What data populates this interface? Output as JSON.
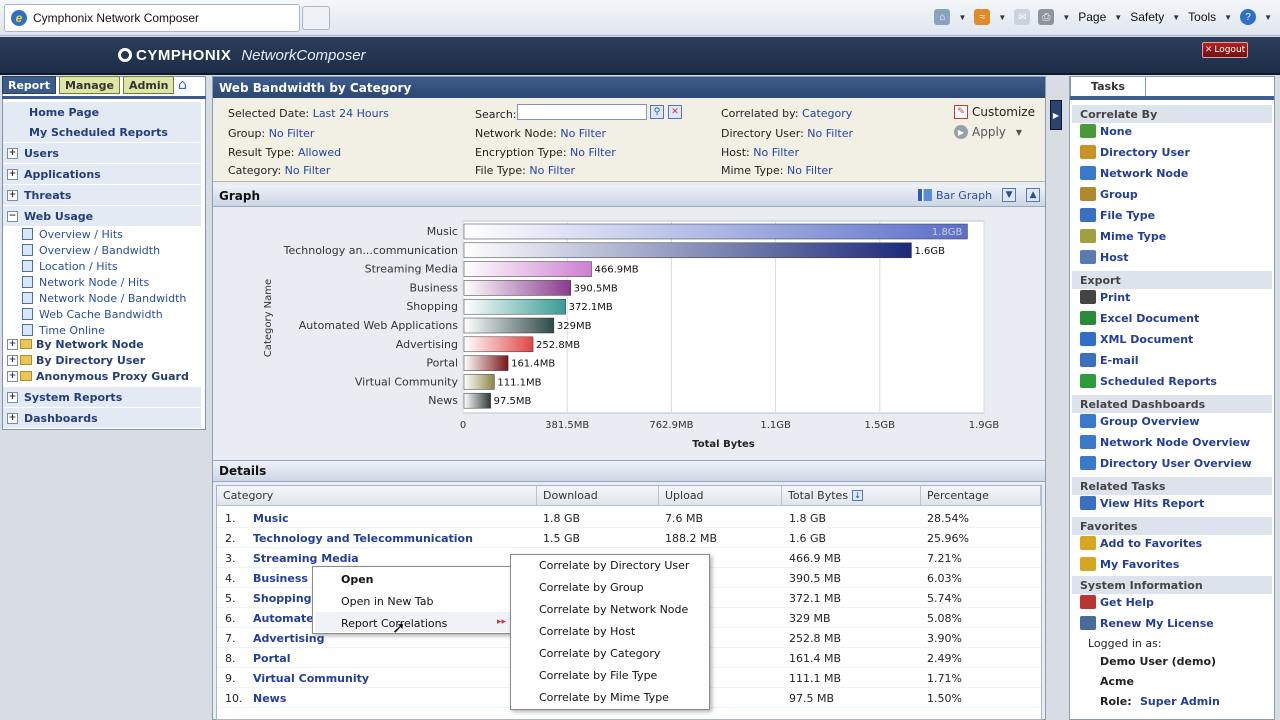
{
  "browser": {
    "tab_title": "Cymphonix Network Composer",
    "commands": {
      "page": "Page",
      "safety": "Safety",
      "tools": "Tools",
      "help": "?"
    }
  },
  "app": {
    "brand": "CYMPHONIX",
    "product": "NetworkComposer",
    "logout": "Logout"
  },
  "nav": {
    "tabs": [
      {
        "label": "Report",
        "active": true
      },
      {
        "label": "Manage"
      },
      {
        "label": "Admin"
      }
    ],
    "home": "Home Page",
    "scheduled": "My Scheduled Reports",
    "users": "Users",
    "applications": "Applications",
    "threats": "Threats",
    "web_usage": "Web Usage",
    "web_usage_items": [
      "Overview / Hits",
      "Overview / Bandwidth",
      "Location / Hits",
      "Network Node / Hits",
      "Network Node / Bandwidth",
      "Web Cache Bandwidth",
      "Time Online"
    ],
    "folders": [
      "By Network Node",
      "By Directory User",
      "Anonymous Proxy Guard"
    ],
    "system_reports": "System Reports",
    "dashboards": "Dashboards"
  },
  "report": {
    "title": "Web Bandwidth by Category",
    "filters": {
      "selected_date_label": "Selected Date:",
      "selected_date": "Last 24 Hours",
      "group_label": "Group:",
      "group": "No Filter",
      "result_type_label": "Result Type:",
      "result_type": "Allowed",
      "category_label": "Category:",
      "category": "No Filter",
      "search_label": "Search:",
      "network_node_label": "Network Node:",
      "network_node": "No Filter",
      "encryption_type_label": "Encryption Type:",
      "encryption_type": "No Filter",
      "file_type_label": "File Type:",
      "file_type": "No Filter",
      "correlated_by_label": "Correlated by:",
      "correlated_by": "Category",
      "directory_user_label": "Directory User:",
      "directory_user": "No Filter",
      "host_label": "Host:",
      "host": "No Filter",
      "mime_type_label": "Mime Type:",
      "mime_type": "No Filter"
    },
    "customize": "Customize",
    "apply": "Apply",
    "graph_label": "Graph",
    "graph_type": "Bar Graph",
    "details_label": "Details"
  },
  "chart_data": {
    "type": "bar",
    "orientation": "horizontal",
    "categories": [
      "Music",
      "Technology an...communication",
      "Streaming Media",
      "Business",
      "Shopping",
      "Automated Web Applications",
      "Advertising",
      "Portal",
      "Virtual Community",
      "News"
    ],
    "values_mb": [
      1843,
      1638,
      466.9,
      390.5,
      372.1,
      329,
      252.8,
      161.4,
      111.1,
      97.5
    ],
    "data_labels": [
      "1.8GB",
      "1.6GB",
      "466.9MB",
      "390.5MB",
      "372.1MB",
      "329MB",
      "252.8MB",
      "161.4MB",
      "111.1MB",
      "97.5MB"
    ],
    "colors": [
      "#5a6fc8",
      "#1b2a7a",
      "#cc7fd0",
      "#8a3a8f",
      "#3a9a94",
      "#2c4a48",
      "#e04545",
      "#7a1515",
      "#8e8448",
      "#2f3a36"
    ],
    "xlabel": "Total Bytes",
    "ylabel": "Category Name",
    "xticks": [
      "0",
      "381.5MB",
      "762.9MB",
      "1.1GB",
      "1.5GB",
      "1.9GB"
    ],
    "xlim_mb": [
      0,
      1907.3
    ],
    "grid": true
  },
  "details": {
    "headers": [
      "Category",
      "Download",
      "Upload",
      "Total Bytes",
      "Percentage"
    ],
    "rows": [
      {
        "n": "1.",
        "category": "Music",
        "download": "1.8 GB",
        "upload": "7.6 MB",
        "total": "1.8 GB",
        "pct": "28.54%"
      },
      {
        "n": "2.",
        "category": "Technology and Telecommunication",
        "download": "1.5 GB",
        "upload": "188.2 MB",
        "total": "1.6 GB",
        "pct": "25.96%"
      },
      {
        "n": "3.",
        "category": "Streaming Media",
        "download": "",
        "upload": "",
        "total": "466.9 MB",
        "pct": "7.21%"
      },
      {
        "n": "4.",
        "category": "Business",
        "download": "",
        "upload": "",
        "total": "390.5 MB",
        "pct": "6.03%"
      },
      {
        "n": "5.",
        "category": "Shopping",
        "download": "",
        "upload": "",
        "total": "372.1 MB",
        "pct": "5.74%"
      },
      {
        "n": "6.",
        "category": "Automate",
        "download": "",
        "upload": "",
        "total": "329 MB",
        "pct": "5.08%"
      },
      {
        "n": "7.",
        "category": "Advertising",
        "download": "",
        "upload": "",
        "total": "252.8 MB",
        "pct": "3.90%"
      },
      {
        "n": "8.",
        "category": "Portal",
        "download": "",
        "upload": "",
        "total": "161.4 MB",
        "pct": "2.49%"
      },
      {
        "n": "9.",
        "category": "Virtual Community",
        "download": "",
        "upload": "",
        "total": "111.1 MB",
        "pct": "1.71%"
      },
      {
        "n": "10.",
        "category": "News",
        "download": "",
        "upload": "",
        "total": "97.5 MB",
        "pct": "1.50%"
      }
    ]
  },
  "context_menu": {
    "items": [
      "Open",
      "Open in New Tab",
      "Report Correlations"
    ],
    "submenu": [
      "Correlate by Directory User",
      "Correlate by Group",
      "Correlate by Network Node",
      "Correlate by Host",
      "Correlate by Category",
      "Correlate by File Type",
      "Correlate by Mime Type"
    ]
  },
  "tasks": {
    "tab": "Tasks",
    "sections": {
      "correlate_by": "Correlate By",
      "export": "Export",
      "related_dashboards": "Related Dashboards",
      "related_tasks": "Related Tasks",
      "favorites": "Favorites",
      "system_information": "System Information"
    },
    "correlate_items": [
      "None",
      "Directory User",
      "Network Node",
      "Group",
      "File Type",
      "Mime Type",
      "Host"
    ],
    "export_items": [
      "Print",
      "Excel Document",
      "XML Document",
      "E-mail",
      "Scheduled Reports"
    ],
    "dashboard_items": [
      "Group Overview",
      "Network Node Overview",
      "Directory User Overview"
    ],
    "related_task_items": [
      "View Hits Report"
    ],
    "favorite_items": [
      "Add to Favorites",
      "My Favorites"
    ],
    "system_items": [
      "Get Help",
      "Renew My License"
    ],
    "logged_in_label": "Logged in as:",
    "user": "Demo User (demo)",
    "org": "Acme",
    "role_label": "Role:",
    "role": "Super Admin"
  }
}
